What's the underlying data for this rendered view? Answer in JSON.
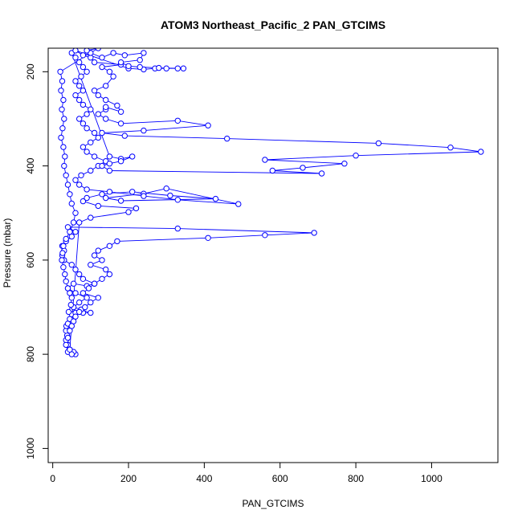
{
  "chart_data": {
    "type": "scatter",
    "title": "ATOM3 Northeast_Pacific_2 PAN_GTCIMS",
    "xlabel": "PAN_GTCIMS",
    "ylabel": "Pressure (mbar)",
    "xlim": [
      -12,
      1175
    ],
    "ylim": [
      1030,
      150
    ],
    "y_reversed": true,
    "x_ticks": [
      0,
      200,
      400,
      600,
      800,
      1000
    ],
    "y_ticks": [
      200,
      400,
      600,
      800,
      1000
    ],
    "x_tick_labels": [
      "0",
      "200",
      "400",
      "600",
      "800",
      "1000"
    ],
    "y_tick_labels": [
      "200",
      "400",
      "600",
      "800",
      "1000"
    ],
    "grid": false,
    "legend": "none",
    "series_color": "#0000ff",
    "marker": "open-circle",
    "connected": true,
    "series": [
      {
        "points": [
          [
            60,
            800
          ],
          [
            55,
            795
          ],
          [
            45,
            790
          ],
          [
            40,
            780
          ],
          [
            35,
            770
          ],
          [
            38,
            760
          ],
          [
            35,
            750
          ],
          [
            36,
            740
          ],
          [
            40,
            735
          ],
          [
            45,
            725
          ],
          [
            50,
            715
          ],
          [
            60,
            712
          ],
          [
            80,
            712
          ],
          [
            100,
            712
          ],
          [
            75,
            705
          ],
          [
            55,
            700
          ],
          [
            70,
            690
          ],
          [
            90,
            680
          ],
          [
            60,
            670
          ],
          [
            40,
            660
          ],
          [
            55,
            650
          ],
          [
            90,
            655
          ],
          [
            110,
            650
          ],
          [
            80,
            640
          ],
          [
            70,
            630
          ],
          [
            60,
            620
          ],
          [
            50,
            610
          ],
          [
            30,
            600
          ],
          [
            25,
            590
          ],
          [
            30,
            580
          ],
          [
            25,
            570
          ],
          [
            35,
            560
          ],
          [
            50,
            550
          ],
          [
            60,
            540
          ],
          [
            40,
            530
          ],
          [
            330,
            533
          ],
          [
            690,
            542
          ],
          [
            560,
            547
          ],
          [
            410,
            553
          ],
          [
            170,
            560
          ],
          [
            150,
            570
          ],
          [
            120,
            580
          ],
          [
            110,
            590
          ],
          [
            130,
            600
          ],
          [
            100,
            610
          ],
          [
            140,
            620
          ],
          [
            150,
            630
          ],
          [
            130,
            640
          ],
          [
            110,
            650
          ],
          [
            95,
            660
          ],
          [
            80,
            670
          ],
          [
            120,
            680
          ],
          [
            100,
            690
          ],
          [
            85,
            700
          ],
          [
            70,
            710
          ],
          [
            60,
            720
          ],
          [
            55,
            730
          ],
          [
            50,
            740
          ],
          [
            45,
            750
          ],
          [
            40,
            765
          ],
          [
            35,
            780
          ],
          [
            40,
            795
          ],
          [
            50,
            800
          ],
          [
            45,
            790
          ],
          [
            70,
            520
          ],
          [
            100,
            510
          ],
          [
            200,
            498
          ],
          [
            220,
            490
          ],
          [
            120,
            485
          ],
          [
            80,
            475
          ],
          [
            90,
            468
          ],
          [
            130,
            460
          ],
          [
            210,
            455
          ],
          [
            310,
            463
          ],
          [
            430,
            470
          ],
          [
            180,
            474
          ],
          [
            140,
            468
          ],
          [
            240,
            459
          ],
          [
            300,
            448
          ],
          [
            490,
            481
          ],
          [
            330,
            472
          ],
          [
            240,
            464
          ],
          [
            150,
            455
          ],
          [
            90,
            450
          ],
          [
            70,
            440
          ],
          [
            60,
            430
          ],
          [
            75,
            420
          ],
          [
            100,
            410
          ],
          [
            120,
            400
          ],
          [
            140,
            390
          ],
          [
            110,
            380
          ],
          [
            90,
            370
          ],
          [
            80,
            360
          ],
          [
            100,
            350
          ],
          [
            120,
            340
          ],
          [
            110,
            330
          ],
          [
            90,
            320
          ],
          [
            80,
            310
          ],
          [
            70,
            300
          ],
          [
            90,
            290
          ],
          [
            100,
            280
          ],
          [
            80,
            270
          ],
          [
            70,
            260
          ],
          [
            60,
            250
          ],
          [
            80,
            240
          ],
          [
            70,
            230
          ],
          [
            60,
            220
          ],
          [
            75,
            210
          ],
          [
            90,
            200
          ],
          [
            80,
            190
          ],
          [
            70,
            180
          ],
          [
            60,
            170
          ],
          [
            50,
            160
          ],
          [
            150,
            380
          ],
          [
            180,
            385
          ],
          [
            210,
            380
          ],
          [
            180,
            390
          ],
          [
            150,
            395
          ],
          [
            130,
            400
          ],
          [
            150,
            410
          ],
          [
            710,
            416
          ],
          [
            580,
            410
          ],
          [
            660,
            404
          ],
          [
            770,
            395
          ],
          [
            560,
            387
          ],
          [
            800,
            378
          ],
          [
            1130,
            370
          ],
          [
            1050,
            361
          ],
          [
            860,
            352
          ],
          [
            460,
            342
          ],
          [
            190,
            336
          ],
          [
            130,
            330
          ],
          [
            240,
            325
          ],
          [
            410,
            314
          ],
          [
            330,
            304
          ],
          [
            180,
            310
          ],
          [
            140,
            300
          ],
          [
            120,
            290
          ],
          [
            140,
            280
          ],
          [
            140,
            275
          ],
          [
            180,
            285
          ],
          [
            170,
            272
          ],
          [
            140,
            260
          ],
          [
            120,
            250
          ],
          [
            110,
            240
          ],
          [
            140,
            230
          ],
          [
            160,
            210
          ],
          [
            150,
            200
          ],
          [
            130,
            190
          ],
          [
            180,
            185
          ],
          [
            110,
            180
          ],
          [
            100,
            170
          ],
          [
            80,
            165
          ],
          [
            60,
            155
          ],
          [
            200,
            193
          ],
          [
            240,
            195
          ],
          [
            270,
            193
          ],
          [
            300,
            193
          ],
          [
            330,
            193
          ],
          [
            345,
            193
          ],
          [
            280,
            192
          ],
          [
            230,
            190
          ],
          [
            200,
            188
          ],
          [
            180,
            180
          ],
          [
            230,
            175
          ],
          [
            240,
            160
          ],
          [
            190,
            165
          ],
          [
            160,
            160
          ],
          [
            130,
            170
          ],
          [
            100,
            160
          ],
          [
            90,
            155
          ],
          [
            120,
            150
          ],
          [
            20,
            200
          ],
          [
            25,
            220
          ],
          [
            22,
            240
          ],
          [
            28,
            260
          ],
          [
            24,
            280
          ],
          [
            30,
            300
          ],
          [
            26,
            320
          ],
          [
            22,
            340
          ],
          [
            28,
            360
          ],
          [
            32,
            380
          ],
          [
            30,
            400
          ],
          [
            35,
            420
          ],
          [
            40,
            440
          ],
          [
            45,
            460
          ],
          [
            50,
            480
          ],
          [
            60,
            500
          ],
          [
            55,
            520
          ],
          [
            45,
            540
          ],
          [
            35,
            555
          ],
          [
            28,
            570
          ],
          [
            26,
            585
          ],
          [
            24,
            600
          ],
          [
            28,
            615
          ],
          [
            32,
            630
          ],
          [
            35,
            645
          ],
          [
            40,
            660
          ],
          [
            45,
            670
          ],
          [
            50,
            680
          ],
          [
            48,
            695
          ],
          [
            42,
            710
          ]
        ]
      }
    ]
  }
}
